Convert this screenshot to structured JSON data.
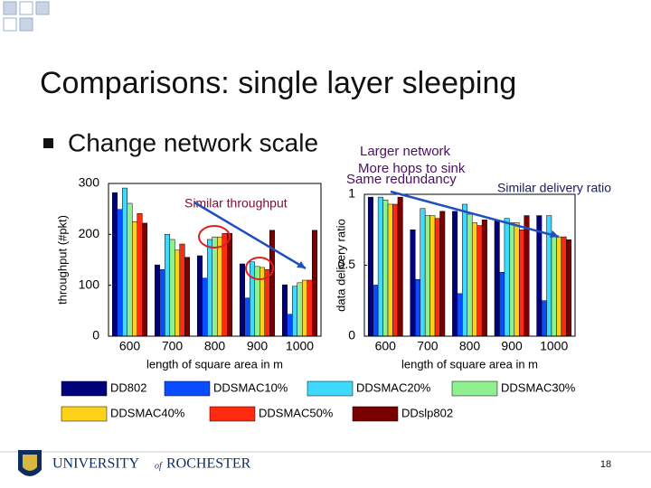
{
  "slide": {
    "title": "Comparisons: single layer sleeping",
    "bullet": "Change network scale",
    "annotations": [
      "Larger network",
      "More hops to sink",
      "Same redundancy",
      "Similar throughput",
      "Similar delivery ratio"
    ],
    "logo": {
      "word1": "UNIVERSITY",
      "word2": "of",
      "word3": "ROCHESTER"
    },
    "page_number": "18"
  },
  "chart_data": [
    {
      "type": "bar",
      "y_label": "throughput (#pkt)",
      "x_label": "length of square area in m",
      "categories": [
        "600",
        "700",
        "800",
        "900",
        "1000"
      ],
      "ylim": [
        0,
        300
      ],
      "yticks": [
        0,
        100,
        200,
        300
      ],
      "series": [
        {
          "name": "DD802",
          "color": "#00007a",
          "values": [
            282,
            140,
            158,
            142,
            101
          ]
        },
        {
          "name": "DDSMAC10%",
          "color": "#0a4cff",
          "values": [
            249,
            131,
            114,
            75,
            43
          ]
        },
        {
          "name": "DDSMAC20%",
          "color": "#3fd8ff",
          "values": [
            291,
            200,
            190,
            146,
            98
          ]
        },
        {
          "name": "DDSMAC30%",
          "color": "#8ef08e",
          "values": [
            261,
            190,
            195,
            137,
            105
          ]
        },
        {
          "name": "DDSMAC40%",
          "color": "#ffd21a",
          "values": [
            225,
            169,
            195,
            135,
            110
          ]
        },
        {
          "name": "DDSMAC50%",
          "color": "#ff2a10",
          "values": [
            241,
            181,
            202,
            131,
            110
          ]
        },
        {
          "name": "DDslp802",
          "color": "#7a0000",
          "values": [
            222,
            155,
            202,
            208,
            208
          ]
        }
      ]
    },
    {
      "type": "bar",
      "y_label": "data delivery ratio",
      "x_label": "length of square area in m",
      "categories": [
        "600",
        "700",
        "800",
        "900",
        "1000"
      ],
      "ylim": [
        0,
        1
      ],
      "yticks": [
        0,
        0.5,
        1
      ],
      "series": [
        {
          "values": [
            0.98,
            0.75,
            0.88,
            0.82,
            0.85
          ]
        },
        {
          "values": [
            0.36,
            0.4,
            0.3,
            0.45,
            0.25
          ]
        },
        {
          "values": [
            0.98,
            0.9,
            0.93,
            0.83,
            0.85
          ]
        },
        {
          "values": [
            0.96,
            0.85,
            0.86,
            0.8,
            0.7
          ]
        },
        {
          "values": [
            0.93,
            0.85,
            0.8,
            0.8,
            0.7
          ]
        },
        {
          "values": [
            0.93,
            0.83,
            0.78,
            0.75,
            0.7
          ]
        },
        {
          "values": [
            0.98,
            0.88,
            0.82,
            0.85,
            0.68
          ]
        }
      ]
    }
  ]
}
